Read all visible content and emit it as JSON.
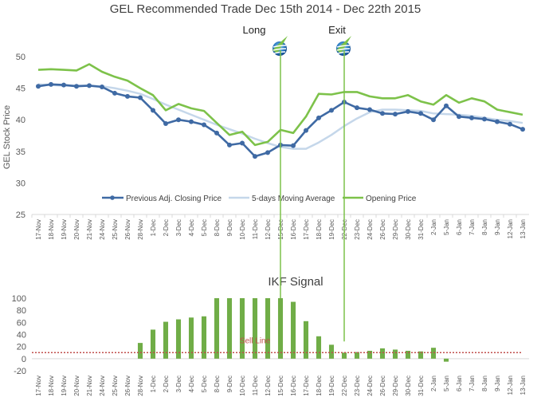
{
  "chart_data": [
    {
      "type": "line",
      "title": "GEL Recommended Trade Dec 15th 2014 - Dec 22th 2015",
      "ylabel": "GEL Stock Price",
      "ylim": [
        25,
        50
      ],
      "yticks": [
        25,
        30,
        35,
        40,
        45,
        50
      ],
      "grid": false,
      "legend": "bottom",
      "categories": [
        "17-Nov",
        "18-Nov",
        "19-Nov",
        "20-Nov",
        "21-Nov",
        "24-Nov",
        "25-Nov",
        "26-Nov",
        "28-Nov",
        "1-Dec",
        "2-Dec",
        "3-Dec",
        "4-Dec",
        "5-Dec",
        "8-Dec",
        "9-Dec",
        "10-Dec",
        "11-Dec",
        "12-Dec",
        "15-Dec",
        "16-Dec",
        "17-Dec",
        "18-Dec",
        "19-Dec",
        "22-Dec",
        "23-Dec",
        "24-Dec",
        "26-Dec",
        "29-Dec",
        "30-Dec",
        "31-Dec",
        "2-Jan",
        "5-Jan",
        "6-Jan",
        "7-Jan",
        "8-Jan",
        "9-Jan",
        "12-Jan",
        "13-Jan"
      ],
      "series": [
        {
          "name": "Previous Adj. Closing Price",
          "color": "#3f6aa4",
          "markers": true,
          "values": [
            45.3,
            45.6,
            45.5,
            45.3,
            45.4,
            45.2,
            44.2,
            43.7,
            43.5,
            41.5,
            39.4,
            40.0,
            39.7,
            39.2,
            37.9,
            36.0,
            36.3,
            34.2,
            34.8,
            36.0,
            35.9,
            38.3,
            40.3,
            41.5,
            42.8,
            41.9,
            41.6,
            41.0,
            40.9,
            41.3,
            41.0,
            40.0,
            42.2,
            40.5,
            40.3,
            40.1,
            39.7,
            39.3,
            38.5
          ]
        },
        {
          "name": "5-days Moving Average",
          "color": "#c5d7ea",
          "markers": false,
          "values": [
            45.6,
            45.5,
            45.4,
            45.4,
            45.4,
            45.3,
            45.0,
            44.6,
            44.1,
            43.3,
            42.4,
            41.6,
            40.8,
            40.0,
            39.2,
            38.5,
            37.8,
            37.0,
            36.3,
            35.7,
            35.4,
            35.4,
            36.4,
            37.6,
            39.0,
            40.2,
            41.2,
            41.6,
            41.6,
            41.5,
            41.4,
            41.0,
            40.9,
            40.8,
            40.6,
            40.3,
            40.0,
            39.8,
            39.5
          ]
        },
        {
          "name": "Opening Price",
          "color": "#7dc24a",
          "markers": false,
          "values": [
            47.9,
            48.0,
            47.9,
            47.8,
            48.8,
            47.6,
            46.8,
            46.2,
            45.0,
            43.9,
            41.5,
            42.5,
            41.8,
            41.4,
            39.5,
            37.6,
            38.1,
            36.0,
            36.5,
            38.4,
            37.9,
            40.5,
            44.1,
            44.0,
            44.4,
            44.4,
            43.7,
            43.4,
            43.4,
            43.9,
            42.9,
            42.4,
            43.9,
            42.7,
            43.4,
            42.9,
            41.6,
            41.2,
            40.8
          ]
        }
      ],
      "annotations": [
        {
          "label": "Long",
          "at": "15-Dec"
        },
        {
          "label": "Exit",
          "at": "22-Dec"
        }
      ]
    },
    {
      "type": "bar",
      "title": "IKF Signal",
      "ylim": [
        -20,
        100
      ],
      "yticks": [
        -20,
        0,
        20,
        40,
        60,
        80,
        100
      ],
      "grid": false,
      "categories": [
        "17-Nov",
        "18-Nov",
        "19-Nov",
        "20-Nov",
        "21-Nov",
        "24-Nov",
        "25-Nov",
        "26-Nov",
        "28-Nov",
        "1-Dec",
        "2-Dec",
        "3-Dec",
        "4-Dec",
        "5-Dec",
        "8-Dec",
        "9-Dec",
        "10-Dec",
        "11-Dec",
        "12-Dec",
        "15-Dec",
        "16-Dec",
        "17-Dec",
        "18-Dec",
        "19-Dec",
        "22-Dec",
        "23-Dec",
        "24-Dec",
        "26-Dec",
        "29-Dec",
        "30-Dec",
        "31-Dec",
        "2-Jan",
        "5-Jan",
        "6-Jan",
        "7-Jan",
        "8-Jan",
        "9-Jan",
        "12-Jan",
        "13-Jan"
      ],
      "values": [
        0,
        0,
        0,
        0,
        0,
        0,
        0,
        0,
        26,
        48,
        61,
        65,
        68,
        70,
        100,
        100,
        100,
        100,
        100,
        100,
        94,
        62,
        37,
        23,
        10,
        11,
        13,
        17,
        15,
        13,
        12,
        18,
        -5,
        0,
        0,
        0,
        0,
        0,
        0
      ],
      "bar_color": "#70ad47",
      "sell_line": {
        "label": "Sell Line",
        "value": 10,
        "color": "#c0504d"
      }
    }
  ],
  "icons": {
    "long_marker": "gel-logo-icon",
    "exit_marker": "gel-logo-icon"
  }
}
